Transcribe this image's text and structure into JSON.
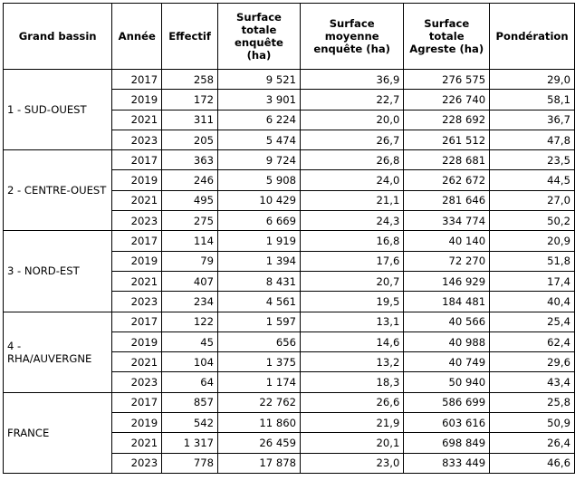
{
  "headers": [
    "Grand bassin",
    "Année",
    "Effectif",
    "Surface totale enquête (ha)",
    "Surface moyenne enquête (ha)",
    "Surface totale Agreste (ha)",
    "Pondération"
  ],
  "groups": [
    {
      "region": "1 - SUD-OUEST",
      "rows": [
        [
          "2017",
          "258",
          "9 521",
          "36,9",
          "276 575",
          "29,0"
        ],
        [
          "2019",
          "172",
          "3 901",
          "22,7",
          "226 740",
          "58,1"
        ],
        [
          "2021",
          "311",
          "6 224",
          "20,0",
          "228 692",
          "36,7"
        ],
        [
          "2023",
          "205",
          "5 474",
          "26,7",
          "261 512",
          "47,8"
        ]
      ]
    },
    {
      "region": "2 - CENTRE-OUEST",
      "rows": [
        [
          "2017",
          "363",
          "9 724",
          "26,8",
          "228 681",
          "23,5"
        ],
        [
          "2019",
          "246",
          "5 908",
          "24,0",
          "262 672",
          "44,5"
        ],
        [
          "2021",
          "495",
          "10 429",
          "21,1",
          "281 646",
          "27,0"
        ],
        [
          "2023",
          "275",
          "6 669",
          "24,3",
          "334 774",
          "50,2"
        ]
      ]
    },
    {
      "region": "3 - NORD-EST",
      "rows": [
        [
          "2017",
          "114",
          "1 919",
          "16,8",
          "40 140",
          "20,9"
        ],
        [
          "2019",
          "79",
          "1 394",
          "17,6",
          "72 270",
          "51,8"
        ],
        [
          "2021",
          "407",
          "8 431",
          "20,7",
          "146 929",
          "17,4"
        ],
        [
          "2023",
          "234",
          "4 561",
          "19,5",
          "184 481",
          "40,4"
        ]
      ]
    },
    {
      "region": "4 - RHA/AUVERGNE",
      "rows": [
        [
          "2017",
          "122",
          "1 597",
          "13,1",
          "40 566",
          "25,4"
        ],
        [
          "2019",
          "45",
          "656",
          "14,6",
          "40 988",
          "62,4"
        ],
        [
          "2021",
          "104",
          "1 375",
          "13,2",
          "40 749",
          "29,6"
        ],
        [
          "2023",
          "64",
          "1 174",
          "18,3",
          "50 940",
          "43,4"
        ]
      ]
    },
    {
      "region": "FRANCE",
      "rows": [
        [
          "2017",
          "857",
          "22 762",
          "26,6",
          "586 699",
          "25,8"
        ],
        [
          "2019",
          "542",
          "11 860",
          "21,9",
          "603 616",
          "50,9"
        ],
        [
          "2021",
          "1 317",
          "26 459",
          "20,1",
          "698 849",
          "26,4"
        ],
        [
          "2023",
          "778",
          "17 878",
          "23,0",
          "833 449",
          "46,6"
        ]
      ]
    }
  ]
}
